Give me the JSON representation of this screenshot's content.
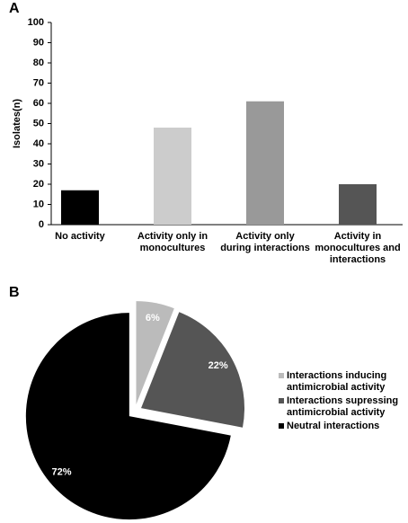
{
  "chart_data": [
    {
      "type": "bar",
      "panel": "A",
      "ylabel": "Isolates(n)",
      "categories": [
        "No activity",
        "Activity only in monocultures",
        "Activity only during interactions",
        "Activity in monocultures and interactions"
      ],
      "values": [
        17,
        48,
        61,
        20
      ],
      "colors": [
        "#000000",
        "#cccccc",
        "#999999",
        "#555555"
      ],
      "ylim": [
        0,
        100
      ],
      "yticks": [
        0,
        10,
        20,
        30,
        40,
        50,
        60,
        70,
        80,
        90,
        100
      ],
      "grid": false
    },
    {
      "type": "pie",
      "panel": "B",
      "categories": [
        "Interactions inducing antimicrobial activity",
        "Interactions supressing antimicrobial activity",
        "Neutral interactions"
      ],
      "values": [
        6,
        22,
        72
      ],
      "value_labels": [
        "6%",
        "22%",
        "72%"
      ],
      "colors": [
        "#bbbbbb",
        "#555555",
        "#000000"
      ],
      "legend": "right"
    }
  ]
}
